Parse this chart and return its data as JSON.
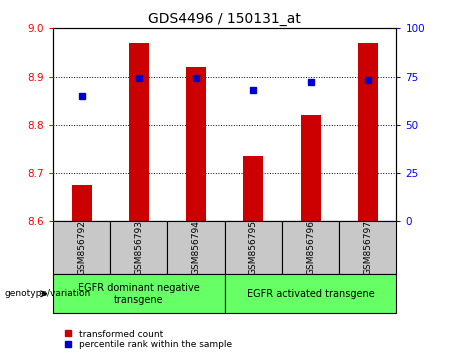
{
  "title": "GDS4496 / 150131_at",
  "samples": [
    "GSM856792",
    "GSM856793",
    "GSM856794",
    "GSM856795",
    "GSM856796",
    "GSM856797"
  ],
  "transformed_count": [
    8.675,
    8.97,
    8.92,
    8.735,
    8.82,
    8.97
  ],
  "percentile_rank": [
    65,
    74,
    74,
    68,
    72,
    73
  ],
  "ylim_left": [
    8.6,
    9.0
  ],
  "ylim_right": [
    0,
    100
  ],
  "yticks_left": [
    8.6,
    8.7,
    8.8,
    8.9,
    9.0
  ],
  "yticks_right": [
    0,
    25,
    50,
    75,
    100
  ],
  "bar_color": "#cc0000",
  "dot_color": "#0000cc",
  "bar_width": 0.35,
  "base_value": 8.6,
  "groups": [
    {
      "label": "EGFR dominant negative\ntransgene"
    },
    {
      "label": "EGFR activated transgene"
    }
  ],
  "legend_red_label": "transformed count",
  "legend_blue_label": "percentile rank within the sample",
  "xlabel_genotype": "genotype/variation",
  "title_fontsize": 10,
  "tick_fontsize": 7.5,
  "label_fontsize": 7,
  "background_color": "#ffffff",
  "plot_bg_color": "#ffffff",
  "sample_bg_color": "#c8c8c8",
  "group_bg_color": "#66ff66"
}
